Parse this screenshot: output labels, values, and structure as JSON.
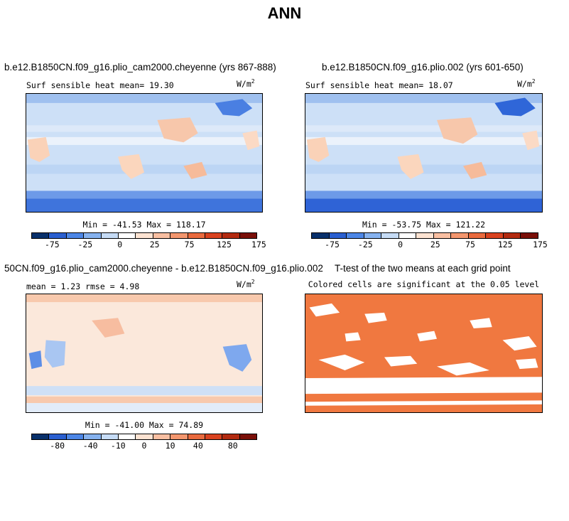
{
  "title": "ANN",
  "palette_seq": [
    "#08306b",
    "#2a5fd0",
    "#4c86e6",
    "#86b2ef",
    "#c6dcf6",
    "#ffffff",
    "#fde3d2",
    "#f9bfa2",
    "#f3966e",
    "#e96a3e",
    "#d9421f",
    "#b22a10",
    "#7a0f08"
  ],
  "units_text": "W/m",
  "units_exp": "2",
  "panels": [
    {
      "title": "b.e12.B1850CN.f09_g16.plio_cam2000.cheyenne (yrs 867-888)",
      "subtitle_left": "Surf sensible heat  mean=  19.30",
      "minmax": "Min = -41.53 Max = 118.17"
    },
    {
      "title": "b.e12.B1850CN.f09_g16.plio.002 (yrs 601-650)",
      "subtitle_left": "Surf sensible heat  mean=  18.07",
      "minmax": "Min = -53.75 Max = 121.22"
    },
    {
      "title": "50CN.f09_g16.plio_cam2000.cheyenne - b.e12.B1850CN.f09_g16.plio.002",
      "subtitle_left": "mean =   1.23    rmse =   4.98",
      "minmax": "Min = -41.00 Max =  74.89"
    },
    {
      "title": "T-test of the two means at each grid point",
      "subtitle_center": "Colored cells are significant at the 0.05 level"
    }
  ],
  "colorbar_top": {
    "tick_labels": [
      "-75",
      "-25",
      "0",
      "25",
      "75",
      "125",
      "175"
    ]
  },
  "colorbar_diff": {
    "tick_labels": [
      "-80",
      "-40",
      "-10",
      "0",
      "10",
      "40",
      "80"
    ]
  },
  "chart_data": [
    {
      "type": "heatmap",
      "title": "b.e12.B1850CN.f09_g16.plio_cam2000.cheyenne (yrs 867-888)",
      "subtitle": "Surf sensible heat  mean=  19.30",
      "units": "W/m^2",
      "mean": 19.3,
      "min": -41.53,
      "max": 118.17,
      "colorbar_levels": [
        -100,
        -75,
        -50,
        -25,
        -10,
        0,
        10,
        25,
        50,
        75,
        100,
        125,
        150,
        175
      ]
    },
    {
      "type": "heatmap",
      "title": "b.e12.B1850CN.f09_g16.plio.002 (yrs 601-650)",
      "subtitle": "Surf sensible heat  mean=  18.07",
      "units": "W/m^2",
      "mean": 18.07,
      "min": -53.75,
      "max": 121.22,
      "colorbar_levels": [
        -100,
        -75,
        -50,
        -25,
        -10,
        0,
        10,
        25,
        50,
        75,
        100,
        125,
        150,
        175
      ]
    },
    {
      "type": "heatmap",
      "title": "50CN.f09_g16.plio_cam2000.cheyenne - b.e12.B1850CN.f09_g16.plio.002",
      "units": "W/m^2",
      "mean": 1.23,
      "rmse": 4.98,
      "min": -41.0,
      "max": 74.89,
      "colorbar_levels": [
        -80,
        -60,
        -40,
        -20,
        -10,
        -5,
        0,
        5,
        10,
        20,
        40,
        60,
        80
      ]
    },
    {
      "type": "heatmap",
      "title": "T-test of the two means at each grid point",
      "subtitle": "Colored cells are significant at the 0.05 level",
      "significance_level": 0.05,
      "colors": {
        "significant": "#f07840",
        "not_significant": "#ffffff"
      }
    }
  ]
}
